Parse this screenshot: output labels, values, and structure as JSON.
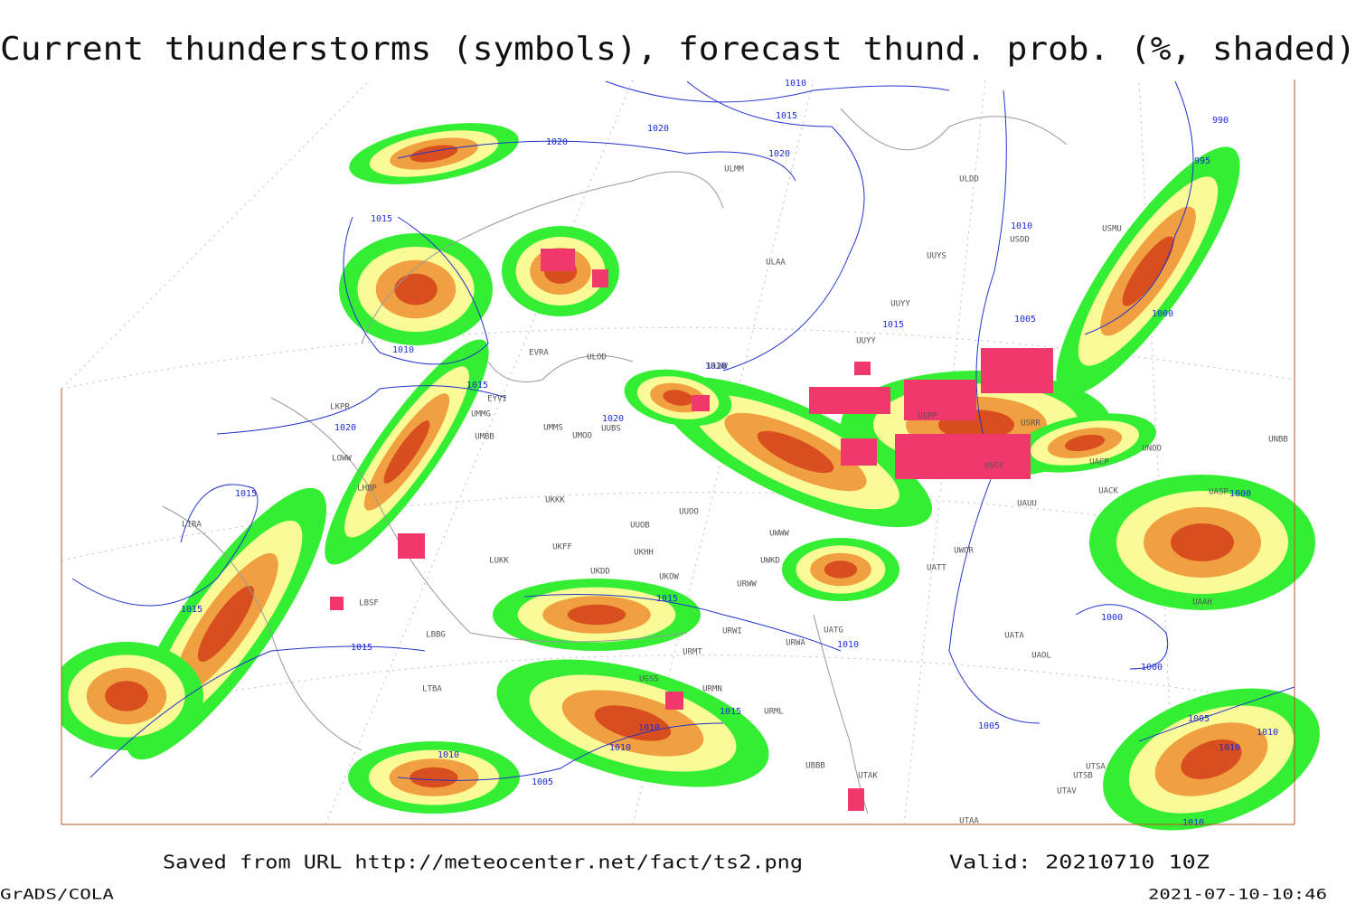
{
  "title": "Current thunderstorms (symbols), forecast thund. prob. (%, shaded)",
  "footer": {
    "source": "Saved from URL http://meteocenter.net/fact/ts2.png",
    "valid": "Valid: 20210710 10Z",
    "software": "GrADS/COLA",
    "timestamp": "2021-07-10-10:46"
  },
  "isobar_labels": [
    "1010",
    "1015",
    "1020",
    "1020",
    "1020",
    "1015",
    "1010",
    "1015",
    "1020",
    "1015",
    "1015",
    "1015",
    "1010",
    "1015",
    "1020",
    "1020",
    "1015",
    "1010",
    "1005",
    "990",
    "995",
    "1000",
    "1000",
    "1000",
    "1000",
    "1005",
    "1015",
    "1010",
    "1010",
    "1010",
    "1005",
    "1005",
    "1010",
    "1010",
    "1010"
  ],
  "station_labels": [
    "ULDD",
    "ULMM",
    "ULAA",
    "UUYS",
    "USDD",
    "USMU",
    "UUYY",
    "UUYY",
    "ULWW",
    "ULOD",
    "EVRA",
    "EYVI",
    "UMMG",
    "UMMS",
    "UMOO",
    "UUBS",
    "UMBB",
    "LKPR",
    "LOWW",
    "LHBP",
    "LIRA",
    "UKKK",
    "UUOB",
    "UUOO",
    "LUKK",
    "UKHH",
    "UKDD",
    "UKOW",
    "UWWW",
    "UWKD",
    "URWW",
    "URWI",
    "URWA",
    "UATG",
    "UATT",
    "UWOR",
    "UAUU",
    "UACK",
    "UACP",
    "UNOO",
    "UNBB",
    "UASP",
    "UAAH",
    "UATA",
    "UAOL",
    "USPP",
    "USCC",
    "USRR",
    "LBSF",
    "LBBG",
    "LTBA",
    "URMT",
    "URMN",
    "URML",
    "UBBB",
    "UTAK",
    "UTSA",
    "UTSB",
    "UTAV",
    "UTAA",
    "UKFF",
    "UGSS"
  ]
}
